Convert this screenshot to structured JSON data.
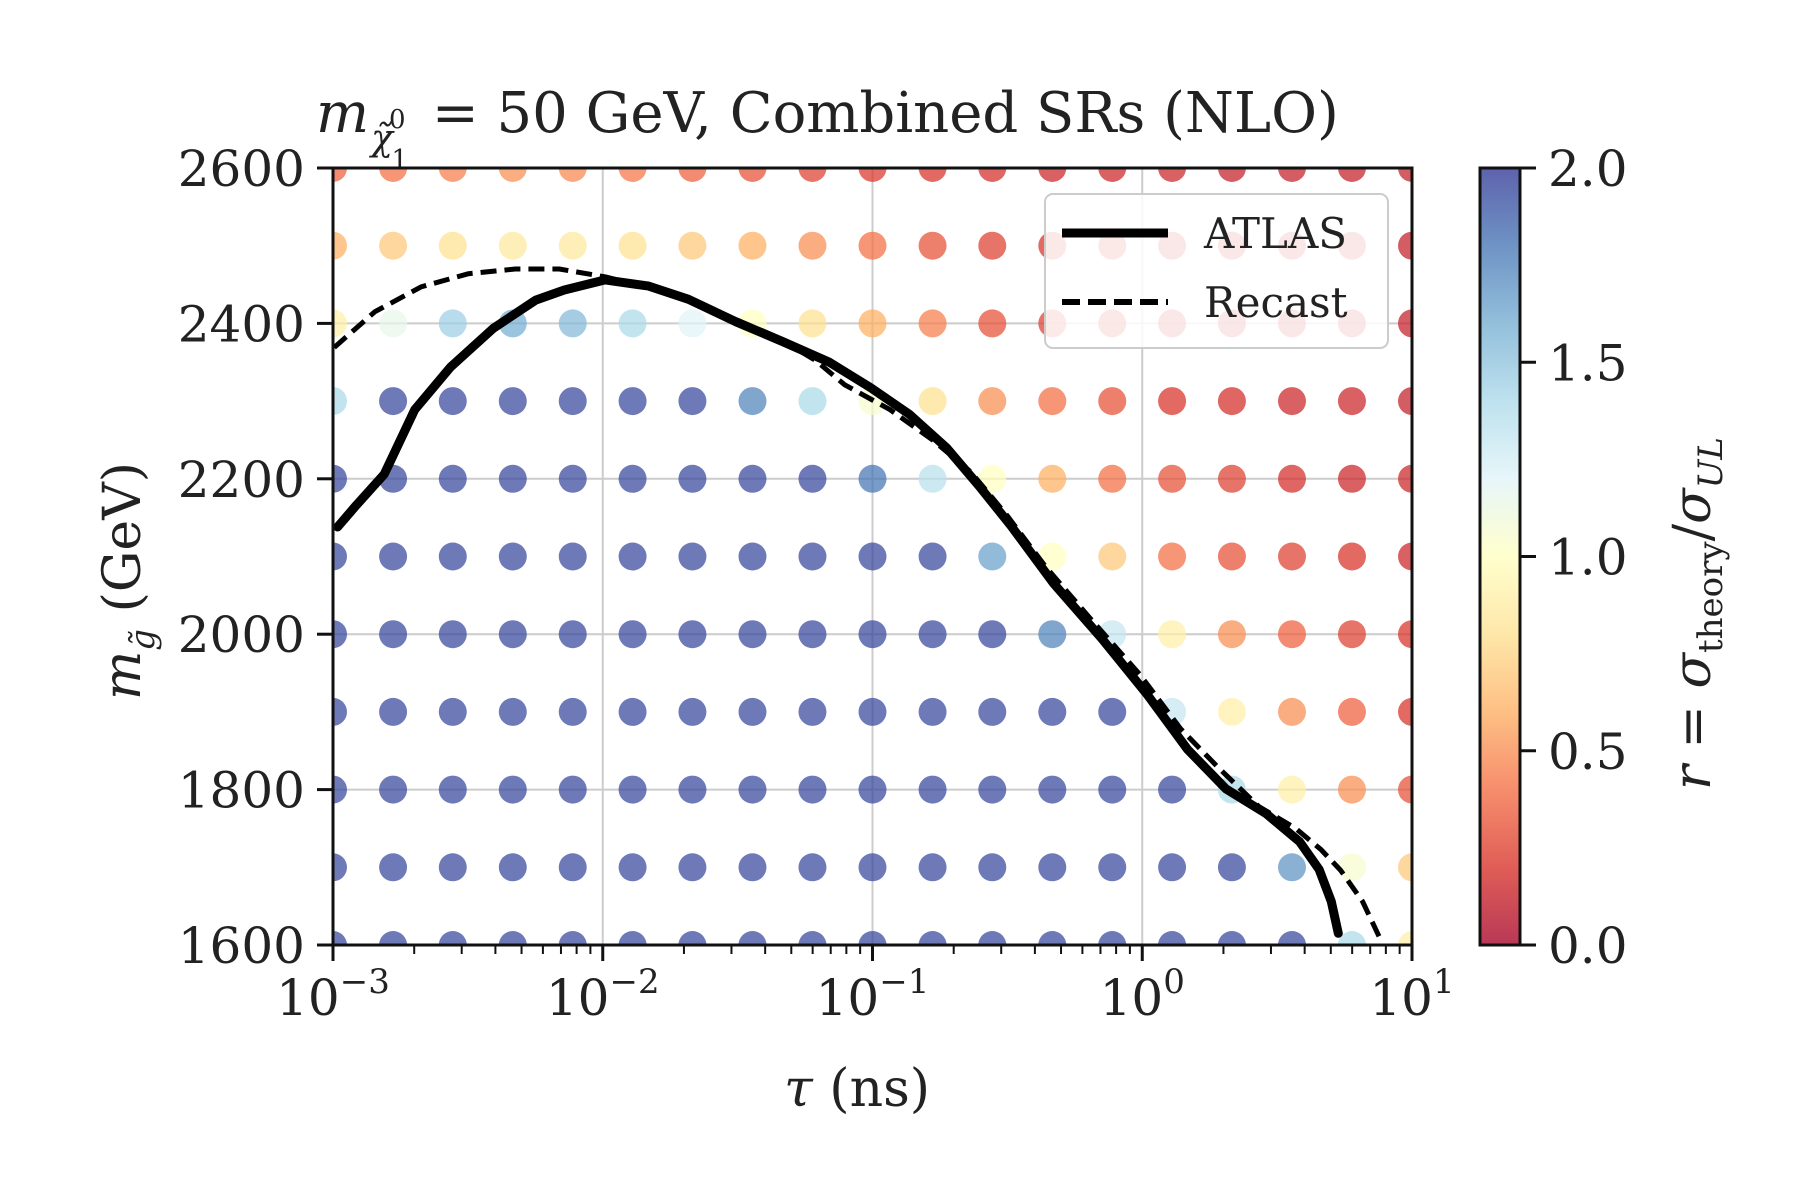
{
  "chart_data": {
    "type": "scatter",
    "title": {
      "prefix": "m",
      "sub_tilde": "χ̃",
      "sub_sup": "0",
      "sub_sub": "1",
      "rest": " = 50 GeV, Combined SRs (NLO)"
    },
    "xlabel": {
      "symbol": "τ",
      "rest": " (ns)"
    },
    "ylabel": {
      "symbol": "m",
      "sub": "g̃",
      "rest": " (GeV)"
    },
    "x_scale": "log",
    "xlim": [
      0.001,
      10
    ],
    "ylim": [
      1600,
      2600
    ],
    "x_ticks": [
      {
        "value": 0.001,
        "base": "10",
        "exp": "−3"
      },
      {
        "value": 0.01,
        "base": "10",
        "exp": "−2"
      },
      {
        "value": 0.1,
        "base": "10",
        "exp": "−1"
      },
      {
        "value": 1,
        "base": "10",
        "exp": "0"
      },
      {
        "value": 10,
        "base": "10",
        "exp": "1"
      }
    ],
    "y_ticks": [
      "1600",
      "1800",
      "2000",
      "2200",
      "2400",
      "2600"
    ],
    "grid": true,
    "colorbar": {
      "label": "r = σ_theory/σ_UL",
      "label_parts": {
        "r": "r",
        "eq": " = ",
        "sigma1": "σ",
        "sub1": "theory",
        "slash": "/",
        "sigma2": "σ",
        "sub2": "UL"
      },
      "range": [
        0,
        2
      ],
      "ticks": [
        "0.0",
        "0.5",
        "1.0",
        "1.5",
        "2.0"
      ],
      "colormap": "RdYlBu",
      "stops": [
        "#a50026",
        "#d73027",
        "#f46d43",
        "#fdae61",
        "#fee090",
        "#ffffbf",
        "#e0f3f8",
        "#abd9e9",
        "#74add1",
        "#4575b4",
        "#313695"
      ]
    },
    "legend": {
      "position": "top-right",
      "entries": [
        {
          "name": "ATLAS",
          "style": "solid"
        },
        {
          "name": "Recast",
          "style": "dashed"
        }
      ]
    },
    "tau_grid": [
      0.001,
      0.00167,
      0.00278,
      0.00464,
      0.00774,
      0.0129,
      0.0215,
      0.0359,
      0.0599,
      0.1,
      0.167,
      0.278,
      0.464,
      0.774,
      1.29,
      2.15,
      3.59,
      5.99,
      10.0
    ],
    "mass_rows": [
      {
        "m": 2600,
        "r": [
          0.35,
          0.4,
          0.45,
          0.5,
          0.48,
          0.42,
          0.35,
          0.3,
          0.25,
          0.22,
          0.2,
          0.18,
          0.15,
          0.15,
          0.15,
          0.12,
          0.12,
          0.12,
          0.12
        ]
      },
      {
        "m": 2500,
        "r": [
          0.6,
          0.7,
          0.8,
          0.85,
          0.85,
          0.8,
          0.7,
          0.6,
          0.5,
          0.4,
          0.3,
          0.25,
          0.2,
          0.2,
          0.18,
          0.15,
          0.15,
          0.15,
          0.12
        ]
      },
      {
        "m": 2400,
        "r": [
          0.9,
          1.15,
          1.45,
          1.6,
          1.55,
          1.4,
          1.2,
          1.0,
          0.8,
          0.6,
          0.45,
          0.3,
          0.25,
          0.2,
          0.18,
          0.15,
          0.15,
          0.15,
          0.12
        ]
      },
      {
        "m": 2300,
        "r": [
          1.4,
          1.95,
          1.95,
          1.95,
          1.95,
          1.95,
          1.95,
          1.75,
          1.4,
          1.05,
          0.8,
          0.5,
          0.4,
          0.3,
          0.2,
          0.18,
          0.15,
          0.15,
          0.12
        ]
      },
      {
        "m": 2200,
        "r": [
          1.95,
          1.95,
          1.95,
          1.95,
          1.95,
          1.95,
          1.95,
          1.95,
          1.95,
          1.8,
          1.35,
          1.0,
          0.6,
          0.4,
          0.3,
          0.25,
          0.18,
          0.15,
          0.15
        ]
      },
      {
        "m": 2100,
        "r": [
          1.95,
          1.95,
          1.95,
          1.95,
          1.95,
          1.95,
          1.95,
          1.95,
          1.95,
          1.95,
          1.95,
          1.65,
          1.0,
          0.7,
          0.4,
          0.3,
          0.25,
          0.2,
          0.15
        ]
      },
      {
        "m": 2000,
        "r": [
          1.95,
          1.95,
          1.95,
          1.95,
          1.95,
          1.95,
          1.95,
          1.95,
          1.95,
          1.95,
          1.95,
          1.95,
          1.75,
          1.3,
          0.9,
          0.5,
          0.35,
          0.25,
          0.2
        ]
      },
      {
        "m": 1900,
        "r": [
          1.95,
          1.95,
          1.95,
          1.95,
          1.95,
          1.95,
          1.95,
          1.95,
          1.95,
          1.95,
          1.95,
          1.95,
          1.95,
          1.95,
          1.3,
          0.9,
          0.5,
          0.35,
          0.2
        ]
      },
      {
        "m": 1800,
        "r": [
          1.95,
          1.95,
          1.95,
          1.95,
          1.95,
          1.95,
          1.95,
          1.95,
          1.95,
          1.95,
          1.95,
          1.95,
          1.95,
          1.95,
          1.95,
          1.4,
          0.9,
          0.5,
          0.3
        ]
      },
      {
        "m": 1700,
        "r": [
          1.95,
          1.95,
          1.95,
          1.95,
          1.95,
          1.95,
          1.95,
          1.95,
          1.95,
          1.95,
          1.95,
          1.95,
          1.95,
          1.95,
          1.95,
          1.95,
          1.7,
          1.05,
          0.7
        ]
      },
      {
        "m": 1600,
        "r": [
          1.95,
          1.95,
          1.95,
          1.95,
          1.95,
          1.95,
          1.95,
          1.95,
          1.95,
          1.95,
          1.95,
          1.95,
          1.95,
          1.95,
          1.95,
          1.95,
          1.95,
          1.4,
          0.9
        ]
      }
    ],
    "series": [
      {
        "name": "ATLAS",
        "style": "solid",
        "x": [
          0.00104,
          0.00122,
          0.00155,
          0.00201,
          0.00273,
          0.00394,
          0.00564,
          0.0072,
          0.0102,
          0.0148,
          0.0208,
          0.0312,
          0.0462,
          0.0693,
          0.0987,
          0.137,
          0.188,
          0.248,
          0.327,
          0.47,
          0.71,
          1.04,
          1.47,
          2.04,
          2.88,
          3.83,
          4.53,
          5.02,
          5.33
        ],
        "y": [
          2138,
          2166,
          2206,
          2289,
          2344,
          2394,
          2430,
          2443,
          2456,
          2448,
          2431,
          2402,
          2377,
          2350,
          2317,
          2283,
          2240,
          2191,
          2139,
          2065,
          1994,
          1923,
          1852,
          1801,
          1769,
          1733,
          1697,
          1656,
          1615
        ]
      },
      {
        "name": "Recast",
        "style": "dashed",
        "x": [
          0.00101,
          0.00143,
          0.00212,
          0.00318,
          0.00474,
          0.0069,
          0.0102,
          0.0147,
          0.0207,
          0.0301,
          0.0438,
          0.0617,
          0.0789,
          0.116,
          0.167,
          0.231,
          0.315,
          0.44,
          0.654,
          0.98,
          1.39,
          1.93,
          2.71,
          3.71,
          4.59,
          5.44,
          6.56,
          7.62
        ],
        "y": [
          2369,
          2415,
          2447,
          2464,
          2470,
          2470,
          2460,
          2446,
          2432,
          2407,
          2383,
          2352,
          2321,
          2289,
          2250,
          2209,
          2153,
          2086,
          2017,
          1948,
          1878,
          1827,
          1778,
          1750,
          1723,
          1696,
          1656,
          1608
        ]
      }
    ]
  }
}
